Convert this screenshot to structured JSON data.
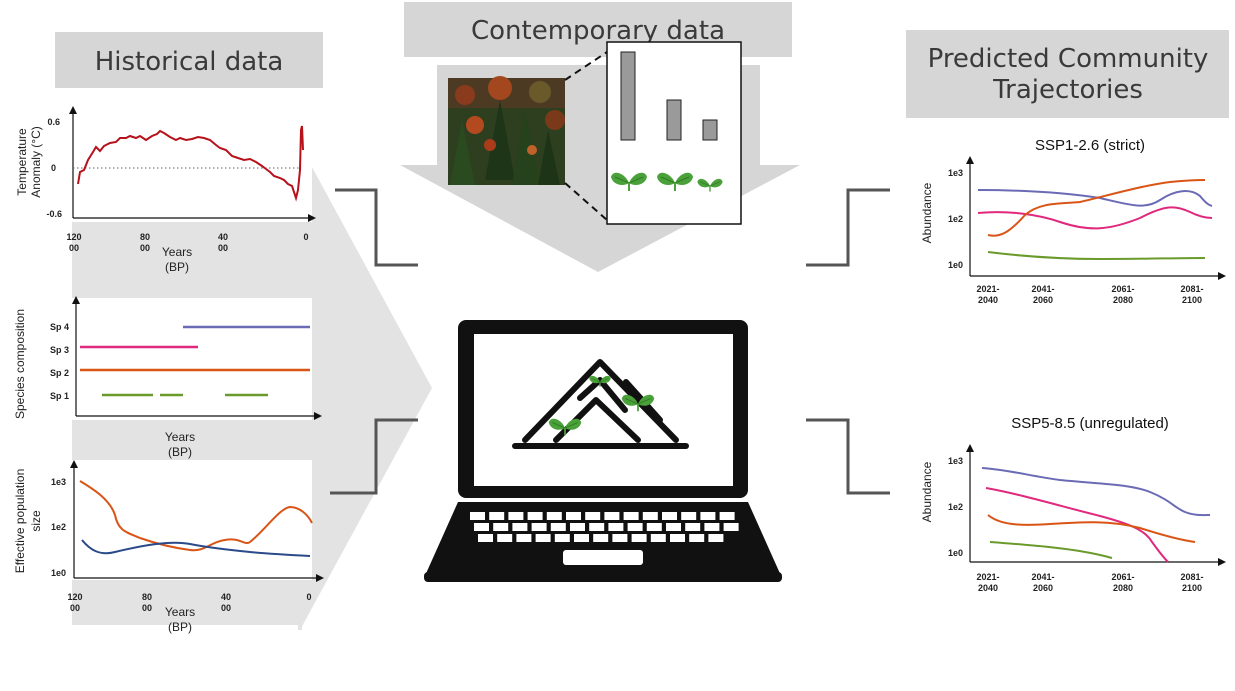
{
  "headers": {
    "historical": "Historical data",
    "contemporary": "Contemporary data",
    "predicted_line1": "Predicted Community",
    "predicted_line2": "Trajectories"
  },
  "temperature": {
    "ylabel_line1": "Temperature",
    "ylabel_line2": "Anomaly (°C)",
    "yticks": [
      "0.6",
      "0",
      "-0.6"
    ],
    "xticks": [
      [
        "120",
        "00"
      ],
      [
        "80",
        "00"
      ],
      [
        "40",
        "00"
      ],
      [
        "0",
        ""
      ]
    ],
    "xlabel_line1": "Years",
    "xlabel_line2": "(BP)",
    "color": "#b5121b"
  },
  "species": {
    "ylabel": "Species composition",
    "yticks": [
      "Sp 4",
      "Sp 3",
      "Sp 2",
      "Sp 1"
    ],
    "xlabel_line1": "Years",
    "xlabel_line2": "(BP)"
  },
  "population": {
    "ylabel_line1": "Effective population",
    "ylabel_line2": "size",
    "yticks": [
      "1e3",
      "1e2",
      "1e0"
    ],
    "xticks": [
      [
        "120",
        "00"
      ],
      [
        "80",
        "00"
      ],
      [
        "40",
        "00"
      ],
      [
        "0",
        ""
      ]
    ],
    "xlabel_line1": "Years",
    "xlabel_line2": "(BP)"
  },
  "ssp1": {
    "title": "SSP1-2.6 (strict)",
    "ylabel": "Abundance",
    "yticks": [
      "1e3",
      "1e2",
      "1e0"
    ],
    "xticks": [
      [
        "2021-",
        "2040"
      ],
      [
        "2041-",
        "2060"
      ],
      [
        "2061-",
        "2080"
      ],
      [
        "2081-",
        "2100"
      ]
    ]
  },
  "ssp5": {
    "title": "SSP5-8.5 (unregulated)",
    "ylabel": "Abundance",
    "yticks": [
      "1e3",
      "1e2",
      "1e0"
    ],
    "xticks": [
      [
        "2021-",
        "2040"
      ],
      [
        "2041-",
        "2060"
      ],
      [
        "2061-",
        "2080"
      ],
      [
        "2081-",
        "2100"
      ]
    ]
  },
  "colors": {
    "purple": "#6b6bb5",
    "pink": "#e0287d",
    "orange": "#d95516",
    "green": "#6a9a2b",
    "navy": "#2a4a8a",
    "header_bg": "#d6d6d6",
    "panel_bg": "#e3e3e3",
    "connector": "#555555"
  },
  "icons": {
    "forest_photo": "forest-photo",
    "bar_chart": "bar-chart-icon",
    "seedling": "seedling-icon",
    "laptop": "laptop-icon",
    "mountain": "mountain-icon"
  }
}
